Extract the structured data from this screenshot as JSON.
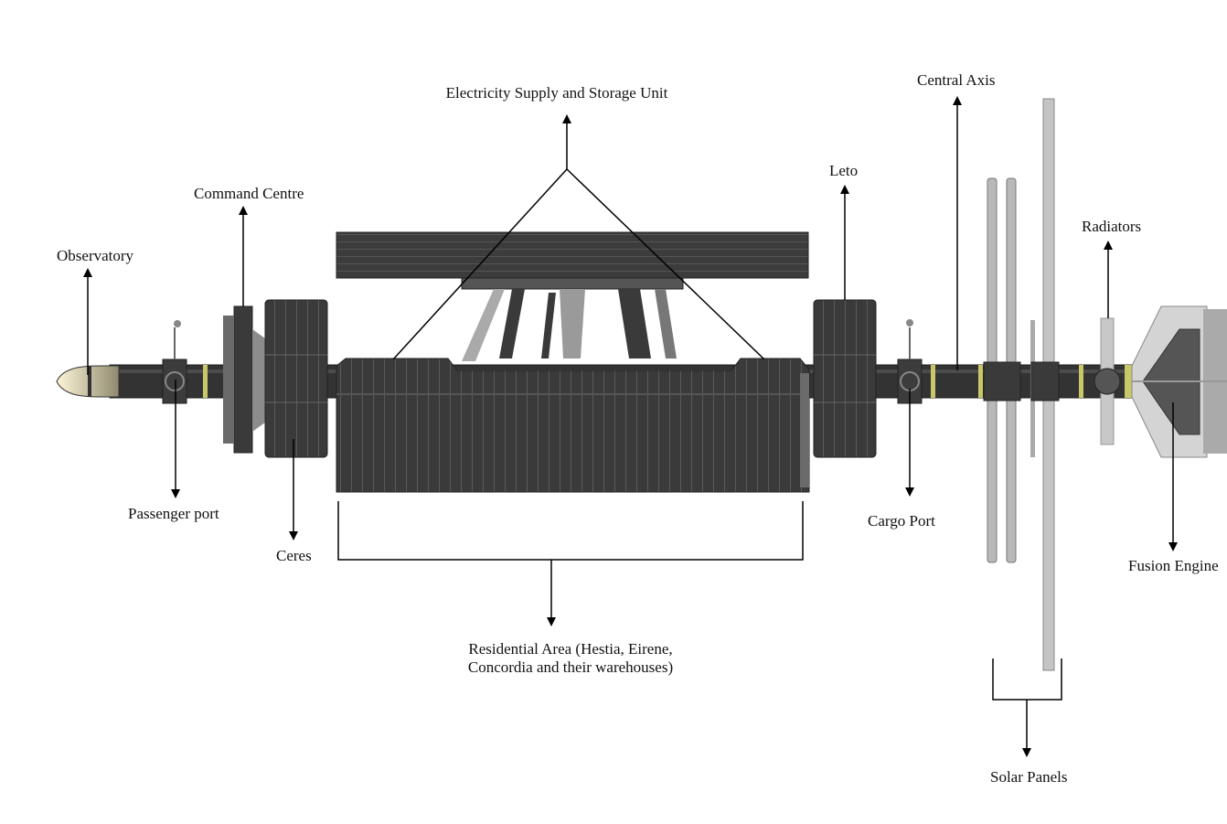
{
  "labels": {
    "observatory": "Observatory",
    "command_centre": "Command Centre",
    "passenger_port": "Passenger port",
    "ceres": "Ceres",
    "electricity": "Electricity Supply and Storage Unit",
    "residential": "Residential Area (Hestia, Eirene, Concordia and their warehouses)",
    "leto": "Leto",
    "central_axis": "Central Axis",
    "cargo_port": "Cargo Port",
    "radiators": "Radiators",
    "fusion_engine": "Fusion Engine",
    "solar_panels": "Solar Panels"
  },
  "colors": {
    "hull_dark": "#333333",
    "hull_mid": "#4a4a4a",
    "hull_light": "#8a8a8a",
    "panel_grey": "#bdbdbd",
    "accent_yellow": "#c8c86a",
    "observatory_tip": "#e6dcb4",
    "line": "#000000"
  }
}
